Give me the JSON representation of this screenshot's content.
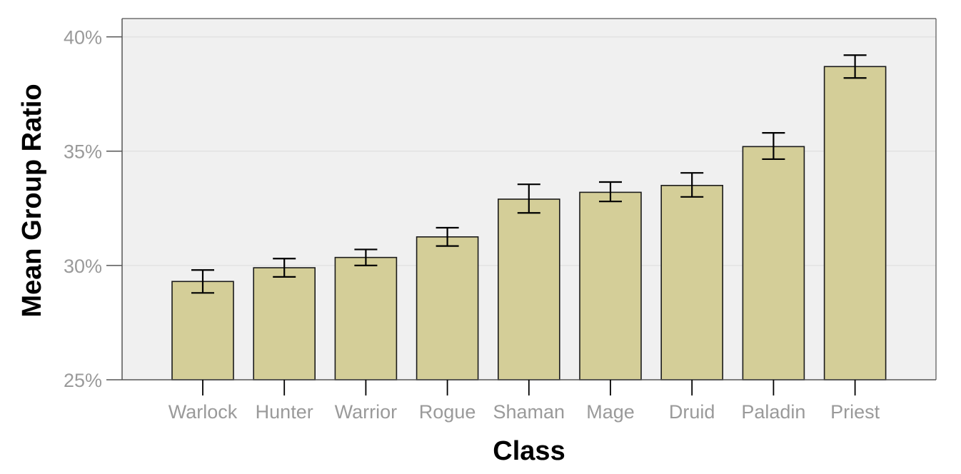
{
  "chart_data": {
    "type": "bar",
    "title": "",
    "xlabel": "Class",
    "ylabel": "Mean Group Ratio",
    "categories": [
      "Warlock",
      "Hunter",
      "Warrior",
      "Rogue",
      "Shaman",
      "Mage",
      "Druid",
      "Paladin",
      "Priest"
    ],
    "values": [
      29.3,
      29.9,
      30.35,
      31.25,
      32.9,
      33.2,
      33.5,
      35.2,
      38.7
    ],
    "error_low": [
      28.8,
      29.5,
      30.0,
      30.85,
      32.3,
      32.8,
      33.0,
      34.65,
      38.2
    ],
    "error_high": [
      29.8,
      30.3,
      30.7,
      31.65,
      33.55,
      33.65,
      34.05,
      35.8,
      39.2
    ],
    "ylim": [
      25,
      40.8
    ],
    "yticks": [
      25,
      30,
      35,
      40
    ],
    "ytick_labels": [
      "25%",
      "30%",
      "35%",
      "40%"
    ],
    "grid": true,
    "colors": {
      "bar_fill": "#d4ce98",
      "bar_stroke": "#1a1a1a",
      "plot_bg": "#f0f0f0",
      "grid": "#e2e2e2",
      "tick_text": "#9a9a9a"
    }
  }
}
